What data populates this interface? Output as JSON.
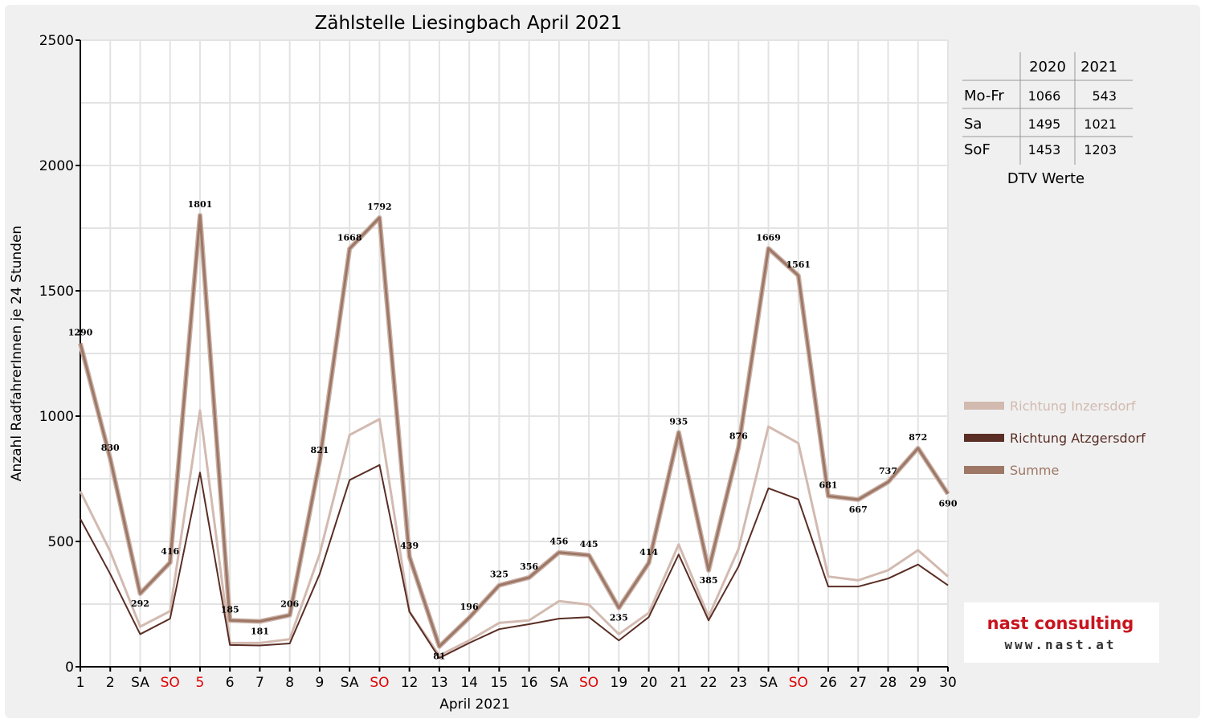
{
  "chart_data": {
    "type": "line",
    "title": "Zählstelle Liesingbach April 2021",
    "xlabel": "April 2021",
    "ylabel": "Anzahl RadfahrerInnen je 24 Stunden",
    "ylim": [
      0,
      2500
    ],
    "yticks": [
      "0",
      "500",
      "1000",
      "1500",
      "2000",
      "2500"
    ],
    "grid": true,
    "legend_position": "right",
    "categories": [
      "1",
      "2",
      "SA",
      "SO",
      "5",
      "6",
      "7",
      "8",
      "9",
      "SA",
      "SO",
      "12",
      "13",
      "14",
      "15",
      "16",
      "SA",
      "SO",
      "19",
      "20",
      "21",
      "22",
      "23",
      "SA",
      "SO",
      "26",
      "27",
      "28",
      "29",
      "30"
    ],
    "red_categories": [
      3,
      4,
      10,
      17,
      24
    ],
    "series": [
      {
        "name": "Richtung Inzersdorf",
        "color": "#d2bab0",
        "width": 3,
        "values": [
          700,
          460,
          160,
          222,
          1023,
          95,
          95,
          110,
          450,
          925,
          988,
          220,
          45,
          105,
          175,
          185,
          262,
          248,
          130,
          215,
          488,
          200,
          470,
          958,
          892,
          360,
          345,
          385,
          465,
          360
        ]
      },
      {
        "name": "Richtung Atzgersdorf",
        "color": "#5a2e25",
        "width": 2,
        "values": [
          590,
          370,
          130,
          192,
          775,
          87,
          85,
          93,
          370,
          745,
          805,
          220,
          35,
          95,
          150,
          170,
          192,
          198,
          105,
          198,
          448,
          185,
          400,
          712,
          668,
          320,
          320,
          352,
          408,
          325
        ]
      },
      {
        "name": "Summe",
        "color": "#9e7766",
        "width": 3,
        "values": [
          1290,
          830,
          292,
          416,
          1801,
          185,
          181,
          206,
          821,
          1668,
          1792,
          439,
          81,
          196,
          325,
          356,
          456,
          445,
          235,
          414,
          935,
          385,
          876,
          1669,
          1561,
          681,
          667,
          737,
          872,
          690
        ]
      }
    ],
    "data_labels": [
      "1290",
      "830",
      "292",
      "416",
      "1801",
      "185",
      "181",
      "206",
      "821",
      "1668",
      "1792",
      "439",
      "81",
      "196",
      "325",
      "356",
      "456",
      "445",
      "235",
      "414",
      "935",
      "385",
      "876",
      "1669",
      "1561",
      "681",
      "667",
      "737",
      "872",
      "690"
    ]
  },
  "dtv_table": {
    "headers": [
      "2020",
      "2021"
    ],
    "rows": [
      {
        "label": "Mo-Fr",
        "v2020": "1066",
        "v2021": "543"
      },
      {
        "label": "Sa",
        "v2020": "1495",
        "v2021": "1021"
      },
      {
        "label": "SoF",
        "v2020": "1453",
        "v2021": "1203"
      }
    ],
    "caption": "DTV Werte"
  },
  "logo": {
    "line1": "nast consulting",
    "line2": "www.nast.at"
  }
}
